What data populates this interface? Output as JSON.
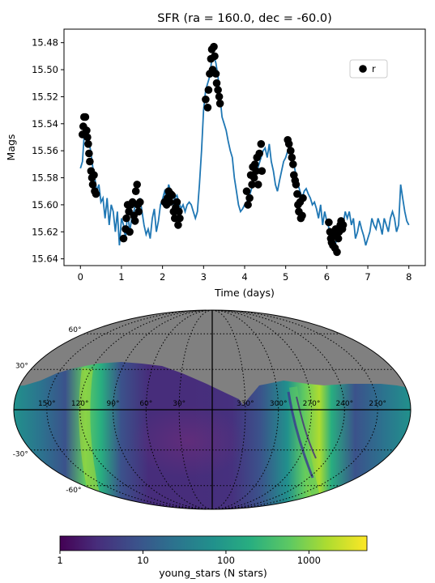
{
  "chart_data": [
    {
      "type": "scatter",
      "title": "SFR (ra = 160.0, dec = -60.0)",
      "xlabel": "Time (days)",
      "ylabel": "Mags",
      "xlim": [
        -0.4,
        8.4
      ],
      "ylim": [
        15.645,
        15.47
      ],
      "y_inverted": true,
      "x_ticks": [
        "0",
        "1",
        "2",
        "3",
        "4",
        "5",
        "6",
        "7",
        "8"
      ],
      "y_ticks": [
        "15.48",
        "15.50",
        "15.52",
        "15.54",
        "15.56",
        "15.58",
        "15.60",
        "15.62",
        "15.64"
      ],
      "legend": {
        "position": "upper right",
        "entries": [
          "r"
        ]
      },
      "line_color": "#1f77b4",
      "marker_color": "#000000",
      "model_curve": [
        [
          0.0,
          15.573
        ],
        [
          0.05,
          15.568
        ],
        [
          0.1,
          15.545
        ],
        [
          0.15,
          15.548
        ],
        [
          0.2,
          15.552
        ],
        [
          0.25,
          15.56
        ],
        [
          0.3,
          15.572
        ],
        [
          0.35,
          15.58
        ],
        [
          0.4,
          15.59
        ],
        [
          0.45,
          15.585
        ],
        [
          0.5,
          15.598
        ],
        [
          0.55,
          15.595
        ],
        [
          0.6,
          15.61
        ],
        [
          0.65,
          15.595
        ],
        [
          0.7,
          15.615
        ],
        [
          0.75,
          15.6
        ],
        [
          0.8,
          15.605
        ],
        [
          0.85,
          15.62
        ],
        [
          0.9,
          15.605
        ],
        [
          0.95,
          15.63
        ],
        [
          1.0,
          15.61
        ],
        [
          1.05,
          15.615
        ],
        [
          1.1,
          15.625
        ],
        [
          1.15,
          15.605
        ],
        [
          1.2,
          15.62
        ],
        [
          1.25,
          15.61
        ],
        [
          1.3,
          15.605
        ],
        [
          1.35,
          15.598
        ],
        [
          1.4,
          15.6
        ],
        [
          1.45,
          15.595
        ],
        [
          1.5,
          15.605
        ],
        [
          1.55,
          15.615
        ],
        [
          1.6,
          15.622
        ],
        [
          1.65,
          15.618
        ],
        [
          1.7,
          15.625
        ],
        [
          1.75,
          15.61
        ],
        [
          1.8,
          15.603
        ],
        [
          1.85,
          15.62
        ],
        [
          1.9,
          15.612
        ],
        [
          1.95,
          15.6
        ],
        [
          2.0,
          15.596
        ],
        [
          2.05,
          15.59
        ],
        [
          2.1,
          15.595
        ],
        [
          2.15,
          15.585
        ],
        [
          2.2,
          15.59
        ],
        [
          2.25,
          15.6
        ],
        [
          2.3,
          15.595
        ],
        [
          2.35,
          15.593
        ],
        [
          2.4,
          15.598
        ],
        [
          2.45,
          15.603
        ],
        [
          2.5,
          15.6
        ],
        [
          2.55,
          15.605
        ],
        [
          2.6,
          15.6
        ],
        [
          2.65,
          15.598
        ],
        [
          2.7,
          15.6
        ],
        [
          2.75,
          15.605
        ],
        [
          2.8,
          15.61
        ],
        [
          2.85,
          15.605
        ],
        [
          2.9,
          15.585
        ],
        [
          2.95,
          15.56
        ],
        [
          3.0,
          15.53
        ],
        [
          3.05,
          15.515
        ],
        [
          3.1,
          15.51
        ],
        [
          3.15,
          15.505
        ],
        [
          3.2,
          15.492
        ],
        [
          3.25,
          15.49
        ],
        [
          3.3,
          15.495
        ],
        [
          3.35,
          15.505
        ],
        [
          3.4,
          15.52
        ],
        [
          3.45,
          15.535
        ],
        [
          3.5,
          15.54
        ],
        [
          3.55,
          15.545
        ],
        [
          3.6,
          15.553
        ],
        [
          3.65,
          15.56
        ],
        [
          3.7,
          15.565
        ],
        [
          3.75,
          15.58
        ],
        [
          3.8,
          15.59
        ],
        [
          3.85,
          15.6
        ],
        [
          3.9,
          15.605
        ],
        [
          3.95,
          15.603
        ],
        [
          4.0,
          15.6
        ],
        [
          4.05,
          15.598
        ],
        [
          4.1,
          15.595
        ],
        [
          4.15,
          15.59
        ],
        [
          4.2,
          15.585
        ],
        [
          4.25,
          15.58
        ],
        [
          4.3,
          15.575
        ],
        [
          4.35,
          15.57
        ],
        [
          4.4,
          15.565
        ],
        [
          4.45,
          15.56
        ],
        [
          4.5,
          15.558
        ],
        [
          4.55,
          15.565
        ],
        [
          4.6,
          15.555
        ],
        [
          4.65,
          15.568
        ],
        [
          4.7,
          15.575
        ],
        [
          4.75,
          15.585
        ],
        [
          4.8,
          15.59
        ],
        [
          4.85,
          15.582
        ],
        [
          4.9,
          15.575
        ],
        [
          4.95,
          15.568
        ],
        [
          5.0,
          15.565
        ],
        [
          5.05,
          15.56
        ],
        [
          5.1,
          15.555
        ],
        [
          5.15,
          15.562
        ],
        [
          5.2,
          15.57
        ],
        [
          5.25,
          15.578
        ],
        [
          5.3,
          15.585
        ],
        [
          5.35,
          15.59
        ],
        [
          5.4,
          15.595
        ],
        [
          5.45,
          15.59
        ],
        [
          5.5,
          15.588
        ],
        [
          5.55,
          15.592
        ],
        [
          5.6,
          15.595
        ],
        [
          5.65,
          15.6
        ],
        [
          5.7,
          15.598
        ],
        [
          5.75,
          15.603
        ],
        [
          5.8,
          15.61
        ],
        [
          5.85,
          15.6
        ],
        [
          5.9,
          15.615
        ],
        [
          5.95,
          15.605
        ],
        [
          6.0,
          15.612
        ],
        [
          6.05,
          15.617
        ],
        [
          6.1,
          15.622
        ],
        [
          6.15,
          15.628
        ],
        [
          6.2,
          15.63
        ],
        [
          6.25,
          15.625
        ],
        [
          6.3,
          15.62
        ],
        [
          6.35,
          15.61
        ],
        [
          6.4,
          15.615
        ],
        [
          6.45,
          15.605
        ],
        [
          6.5,
          15.61
        ],
        [
          6.55,
          15.605
        ],
        [
          6.6,
          15.615
        ],
        [
          6.65,
          15.61
        ],
        [
          6.7,
          15.625
        ],
        [
          6.75,
          15.62
        ],
        [
          6.8,
          15.612
        ],
        [
          6.85,
          15.618
        ],
        [
          6.9,
          15.623
        ],
        [
          6.95,
          15.63
        ],
        [
          7.0,
          15.625
        ],
        [
          7.05,
          15.62
        ],
        [
          7.1,
          15.61
        ],
        [
          7.15,
          15.615
        ],
        [
          7.2,
          15.618
        ],
        [
          7.25,
          15.61
        ],
        [
          7.3,
          15.615
        ],
        [
          7.35,
          15.622
        ],
        [
          7.4,
          15.61
        ],
        [
          7.45,
          15.615
        ],
        [
          7.5,
          15.62
        ],
        [
          7.55,
          15.61
        ],
        [
          7.6,
          15.605
        ],
        [
          7.65,
          15.61
        ],
        [
          7.7,
          15.62
        ],
        [
          7.75,
          15.615
        ],
        [
          7.8,
          15.585
        ],
        [
          7.85,
          15.595
        ],
        [
          7.9,
          15.605
        ],
        [
          7.95,
          15.612
        ],
        [
          8.0,
          15.615
        ]
      ],
      "observed_points": [
        [
          0.05,
          15.548
        ],
        [
          0.07,
          15.542
        ],
        [
          0.09,
          15.535
        ],
        [
          0.12,
          15.535
        ],
        [
          0.15,
          15.545
        ],
        [
          0.17,
          15.55
        ],
        [
          0.19,
          15.555
        ],
        [
          0.21,
          15.562
        ],
        [
          0.23,
          15.568
        ],
        [
          0.26,
          15.575
        ],
        [
          0.28,
          15.58
        ],
        [
          0.3,
          15.585
        ],
        [
          0.33,
          15.578
        ],
        [
          0.35,
          15.59
        ],
        [
          0.38,
          15.592
        ],
        [
          1.05,
          15.625
        ],
        [
          1.1,
          15.618
        ],
        [
          1.12,
          15.61
        ],
        [
          1.15,
          15.6
        ],
        [
          1.18,
          15.605
        ],
        [
          1.2,
          15.62
        ],
        [
          1.23,
          15.6
        ],
        [
          1.27,
          15.598
        ],
        [
          1.3,
          15.608
        ],
        [
          1.33,
          15.612
        ],
        [
          1.35,
          15.59
        ],
        [
          1.38,
          15.585
        ],
        [
          1.4,
          15.6
        ],
        [
          1.42,
          15.605
        ],
        [
          1.45,
          15.598
        ],
        [
          2.05,
          15.598
        ],
        [
          2.1,
          15.6
        ],
        [
          2.12,
          15.595
        ],
        [
          2.15,
          15.59
        ],
        [
          2.18,
          15.598
        ],
        [
          2.2,
          15.592
        ],
        [
          2.23,
          15.593
        ],
        [
          2.27,
          15.605
        ],
        [
          2.3,
          15.61
        ],
        [
          2.32,
          15.602
        ],
        [
          2.35,
          15.598
        ],
        [
          2.38,
          15.615
        ],
        [
          2.4,
          15.605
        ],
        [
          2.42,
          15.61
        ],
        [
          3.05,
          15.522
        ],
        [
          3.1,
          15.528
        ],
        [
          3.12,
          15.515
        ],
        [
          3.15,
          15.503
        ],
        [
          3.18,
          15.492
        ],
        [
          3.2,
          15.485
        ],
        [
          3.22,
          15.5
        ],
        [
          3.25,
          15.483
        ],
        [
          3.27,
          15.49
        ],
        [
          3.3,
          15.503
        ],
        [
          3.32,
          15.51
        ],
        [
          3.35,
          15.515
        ],
        [
          3.38,
          15.52
        ],
        [
          3.4,
          15.525
        ],
        [
          4.05,
          15.59
        ],
        [
          4.08,
          15.6
        ],
        [
          4.12,
          15.595
        ],
        [
          4.15,
          15.578
        ],
        [
          4.18,
          15.585
        ],
        [
          4.2,
          15.572
        ],
        [
          4.23,
          15.58
        ],
        [
          4.25,
          15.57
        ],
        [
          4.28,
          15.575
        ],
        [
          4.3,
          15.565
        ],
        [
          4.33,
          15.585
        ],
        [
          4.36,
          15.562
        ],
        [
          4.4,
          15.555
        ],
        [
          4.42,
          15.575
        ],
        [
          5.05,
          15.552
        ],
        [
          5.08,
          15.555
        ],
        [
          5.12,
          15.56
        ],
        [
          5.15,
          15.565
        ],
        [
          5.18,
          15.57
        ],
        [
          5.2,
          15.578
        ],
        [
          5.23,
          15.582
        ],
        [
          5.25,
          15.585
        ],
        [
          5.28,
          15.592
        ],
        [
          5.3,
          15.6
        ],
        [
          5.32,
          15.605
        ],
        [
          5.35,
          15.598
        ],
        [
          5.37,
          15.61
        ],
        [
          5.4,
          15.608
        ],
        [
          5.42,
          15.595
        ],
        [
          6.05,
          15.613
        ],
        [
          6.08,
          15.62
        ],
        [
          6.1,
          15.625
        ],
        [
          6.12,
          15.628
        ],
        [
          6.15,
          15.63
        ],
        [
          6.18,
          15.622
        ],
        [
          6.2,
          15.632
        ],
        [
          6.22,
          15.618
        ],
        [
          6.25,
          15.635
        ],
        [
          6.28,
          15.625
        ],
        [
          6.3,
          15.62
        ],
        [
          6.33,
          15.615
        ],
        [
          6.35,
          15.612
        ],
        [
          6.38,
          15.618
        ],
        [
          6.4,
          15.615
        ]
      ]
    },
    {
      "type": "heatmap",
      "projection": "mollweide",
      "lon_labels": [
        "150°",
        "120°",
        "90°",
        "60°",
        "30°",
        "330°",
        "300°",
        "270°",
        "240°",
        "210°"
      ],
      "lat_labels": [
        "60°",
        "30°",
        "-30°",
        "-60°"
      ],
      "colorbar": {
        "label": "young_stars (N stars)",
        "scale": "log",
        "ticks": [
          "1",
          "10",
          "100",
          "1000"
        ],
        "range": [
          1,
          5000
        ],
        "colors": [
          "#440154",
          "#472d7b",
          "#3b528b",
          "#2c728e",
          "#21918c",
          "#28ae80",
          "#5ec962",
          "#addc30",
          "#fde725"
        ]
      },
      "masked_color": "#808080"
    }
  ]
}
